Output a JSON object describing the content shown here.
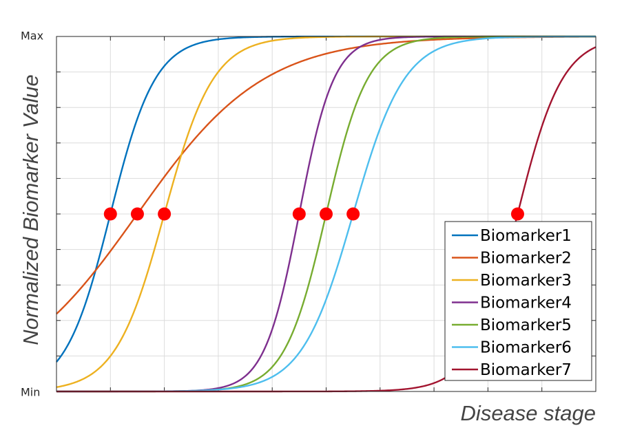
{
  "chart_data": {
    "type": "line",
    "title": "",
    "xlabel": "Disease stage",
    "ylabel": "Normalized Biomarker Value",
    "yticklabels": {
      "min": "Min",
      "max": "Max"
    },
    "xlim": [
      0,
      10
    ],
    "ylim": [
      0,
      1
    ],
    "grid": true,
    "legend_position": "bottom-right",
    "series": [
      {
        "name": "Biomarker1",
        "color": "#0072BD",
        "midpoint": 1.0,
        "slope": 2.4,
        "marker_y": 0.5
      },
      {
        "name": "Biomarker2",
        "color": "#D95319",
        "midpoint": 1.5,
        "slope": 0.85,
        "marker_y": 0.5
      },
      {
        "name": "Biomarker3",
        "color": "#EDB120",
        "midpoint": 2.0,
        "slope": 2.2,
        "marker_y": 0.5
      },
      {
        "name": "Biomarker4",
        "color": "#7E2F8E",
        "midpoint": 4.5,
        "slope": 3.1,
        "marker_y": 0.5
      },
      {
        "name": "Biomarker5",
        "color": "#77AC30",
        "midpoint": 5.0,
        "slope": 2.6,
        "marker_y": 0.5
      },
      {
        "name": "Biomarker6",
        "color": "#4DBEEE",
        "midpoint": 5.5,
        "slope": 2.1,
        "marker_y": 0.5
      },
      {
        "name": "Biomarker7",
        "color": "#A2142F",
        "midpoint": 8.55,
        "slope": 2.4,
        "marker_y": 0.5
      }
    ],
    "marker_color": "#FF0000"
  }
}
